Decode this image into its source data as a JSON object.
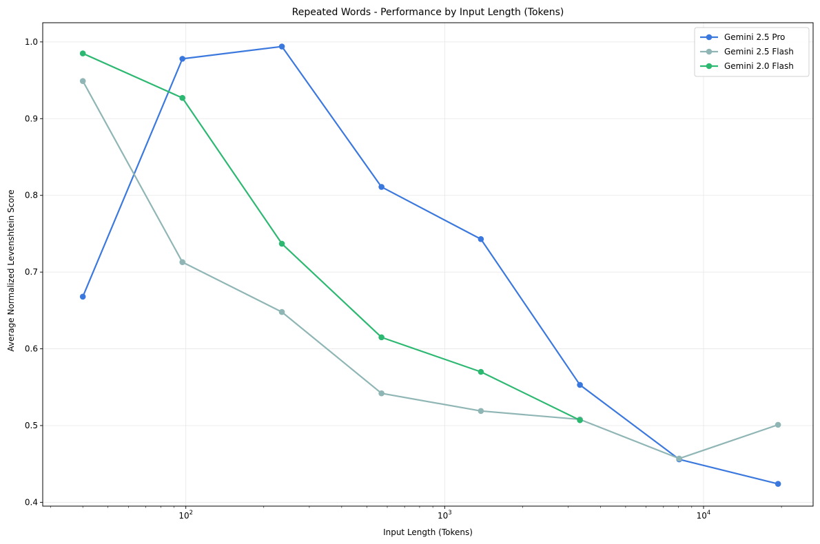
{
  "chart_data": {
    "type": "line",
    "title": "Repeated Words - Performance by Input Length (Tokens)",
    "xlabel": "Input Length (Tokens)",
    "ylabel": "Average Normalized Levenshtein Score",
    "x_scale": "log",
    "xlim": [
      28,
      26500
    ],
    "ylim": [
      0.395,
      1.025
    ],
    "x_ticks": [
      100,
      1000,
      10000
    ],
    "x_tick_labels": [
      {
        "base": "10",
        "exp": "2"
      },
      {
        "base": "10",
        "exp": "3"
      },
      {
        "base": "10",
        "exp": "4"
      }
    ],
    "y_ticks": [
      0.4,
      0.5,
      0.6,
      0.7,
      0.8,
      0.9,
      1.0
    ],
    "y_tick_labels": [
      "0.4",
      "0.5",
      "0.6",
      "0.7",
      "0.8",
      "0.9",
      "1.0"
    ],
    "grid": true,
    "legend_position": "top-right",
    "series": [
      {
        "name": "Gemini 2.5 Pro",
        "color": "#3b78de",
        "x": [
          40,
          97,
          235,
          570,
          1380,
          3330,
          8050,
          19400
        ],
        "y": [
          0.668,
          0.978,
          0.994,
          0.811,
          0.743,
          0.553,
          0.456,
          0.424
        ]
      },
      {
        "name": "Gemini 2.5 Flash",
        "color": "#8fb5b5",
        "x": [
          40,
          97,
          235,
          570,
          1380,
          3330,
          8050,
          19400
        ],
        "y": [
          0.949,
          0.713,
          0.648,
          0.542,
          0.519,
          0.508,
          0.457,
          0.501
        ]
      },
      {
        "name": "Gemini 2.0 Flash",
        "color": "#2db872",
        "x": [
          40,
          97,
          235,
          570,
          1380,
          3330
        ],
        "y": [
          0.985,
          0.927,
          0.737,
          0.615,
          0.57,
          0.507
        ]
      }
    ]
  }
}
